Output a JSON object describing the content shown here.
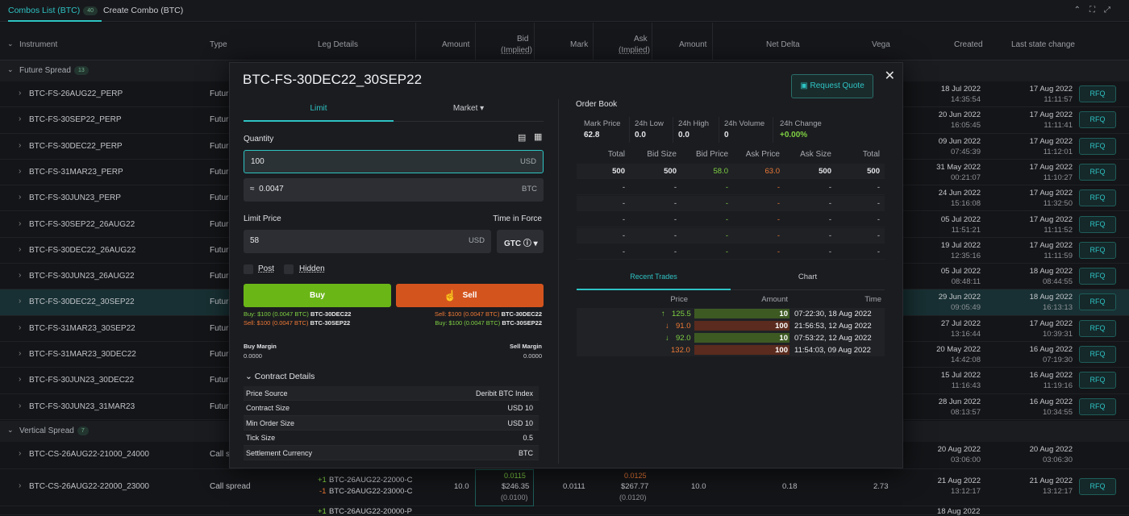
{
  "tabs": {
    "combos_list": "Combos List (BTC)",
    "combos_count": "40",
    "create_combo": "Create Combo (BTC)"
  },
  "colors": {
    "accent": "#2ec3c3",
    "buy": "#6ab617",
    "sell": "#d4541e",
    "up": "#7fd142",
    "down": "#f07a35"
  },
  "table": {
    "headers": {
      "instrument": "Instrument",
      "type": "Type",
      "leg_details": "Leg Details",
      "amount": "Amount",
      "bid": "Bid",
      "bid_sub": "(Implied)",
      "mark": "Mark",
      "ask": "Ask",
      "ask_sub": "(Implied)",
      "amount2": "Amount",
      "net_delta": "Net Delta",
      "vega": "Vega",
      "created": "Created",
      "last_state_change": "Last state change"
    },
    "group1": {
      "label": "Future Spread",
      "count": "13"
    },
    "group2": {
      "label": "Vertical Spread",
      "count": "7"
    },
    "rfq": "RFQ",
    "rows": [
      {
        "inst": "BTC-FS-26AUG22_PERP",
        "type": "Futur",
        "cd": "18 Jul 2022",
        "ct": "14:35:54",
        "ld": "17 Aug 2022",
        "lt": "11:11:57"
      },
      {
        "inst": "BTC-FS-30SEP22_PERP",
        "type": "Futur",
        "cd": "20 Jun 2022",
        "ct": "16:05:45",
        "ld": "17 Aug 2022",
        "lt": "11:11:41"
      },
      {
        "inst": "BTC-FS-30DEC22_PERP",
        "type": "Futur",
        "cd": "09 Jun 2022",
        "ct": "07:45:39",
        "ld": "17 Aug 2022",
        "lt": "11:12:01"
      },
      {
        "inst": "BTC-FS-31MAR23_PERP",
        "type": "Futur",
        "cd": "31 May 2022",
        "ct": "00:21:07",
        "ld": "17 Aug 2022",
        "lt": "11:10:27"
      },
      {
        "inst": "BTC-FS-30JUN23_PERP",
        "type": "Futur",
        "cd": "24 Jun 2022",
        "ct": "15:16:08",
        "ld": "17 Aug 2022",
        "lt": "11:32:50"
      },
      {
        "inst": "BTC-FS-30SEP22_26AUG22",
        "type": "Futur",
        "cd": "05 Jul 2022",
        "ct": "11:51:21",
        "ld": "17 Aug 2022",
        "lt": "11:11:52"
      },
      {
        "inst": "BTC-FS-30DEC22_26AUG22",
        "type": "Futur",
        "cd": "19 Jul 2022",
        "ct": "12:35:16",
        "ld": "17 Aug 2022",
        "lt": "11:11:59"
      },
      {
        "inst": "BTC-FS-30JUN23_26AUG22",
        "type": "Futur",
        "cd": "05 Jul 2022",
        "ct": "08:48:11",
        "ld": "18 Aug 2022",
        "lt": "08:44:55"
      },
      {
        "inst": "BTC-FS-30DEC22_30SEP22",
        "type": "Futur",
        "cd": "29 Jun 2022",
        "ct": "09:05:49",
        "ld": "18 Aug 2022",
        "lt": "16:13:13"
      },
      {
        "inst": "BTC-FS-31MAR23_30SEP22",
        "type": "Futur",
        "cd": "27 Jul 2022",
        "ct": "13:16:44",
        "ld": "17 Aug 2022",
        "lt": "10:39:31"
      },
      {
        "inst": "BTC-FS-31MAR23_30DEC22",
        "type": "Futur",
        "cd": "20 May 2022",
        "ct": "14:42:08",
        "ld": "16 Aug 2022",
        "lt": "07:19:30"
      },
      {
        "inst": "BTC-FS-30JUN23_30DEC22",
        "type": "Futur",
        "cd": "15 Jul 2022",
        "ct": "11:16:43",
        "ld": "16 Aug 2022",
        "lt": "11:19:16"
      },
      {
        "inst": "BTC-FS-30JUN23_31MAR23",
        "type": "Futur",
        "cd": "28 Jun 2022",
        "ct": "08:13:57",
        "ld": "16 Aug 2022",
        "lt": "10:34:55"
      }
    ],
    "vrows": [
      {
        "inst": "BTC-CS-26AUG22-21000_24000",
        "type": "Call s",
        "cd": "20 Aug 2022",
        "ct": "03:06:00",
        "ld": "20 Aug 2022",
        "lt": "03:06:30"
      },
      {
        "inst": "BTC-CS-26AUG22-22000_23000",
        "type": "Call spread",
        "cd": "21 Aug 2022",
        "ct": "13:12:17",
        "ld": "21 Aug 2022",
        "lt": "13:12:17",
        "leg1_sign": "+1",
        "leg1": "BTC-26AUG22-22000-C",
        "leg2_sign": "-1",
        "leg2": "BTC-26AUG22-23000-C",
        "amount": "10.0",
        "bid_top": "0.0115",
        "bid_mid": "$246.35",
        "bid_bot": "(0.0100)",
        "mark": "0.0111",
        "ask_top": "0.0125",
        "ask_mid": "$267.77",
        "ask_bot": "(0.0120)",
        "amount2": "10.0",
        "net_delta": "0.18",
        "vega": "2.73"
      }
    ],
    "partial": {
      "leg_sign": "+1",
      "leg": "BTC-26AUG22-20000-P",
      "created": "18 Aug 2022"
    }
  },
  "modal": {
    "title": "BTC-FS-30DEC22_30SEP22",
    "request_quote": "Request Quote",
    "tab_limit": "Limit",
    "tab_market": "Market",
    "quantity_label": "Quantity",
    "quantity_value": "100",
    "quantity_unit": "USD",
    "approx_prefix": "≈",
    "approx_value": "0.0047",
    "approx_unit": "BTC",
    "limit_price_label": "Limit Price",
    "tif_label": "Time in Force",
    "limit_price_value": "58",
    "limit_price_unit": "USD",
    "tif_value": "GTC",
    "post": "Post",
    "hidden": "Hidden",
    "buy": "Buy",
    "sell": "Sell",
    "buy_l1_a": "Buy: $100 (0.0047 BTC)",
    "buy_l1_b": "BTC-30DEC22",
    "buy_l2_a": "Sell: $100 (0.0047 BTC)",
    "buy_l2_b": "BTC-30SEP22",
    "sell_l1_a": "Sell: $100 (0.0047 BTC)",
    "sell_l1_b": "BTC-30DEC22",
    "sell_l2_a": "Buy: $100 (0.0047 BTC)",
    "sell_l2_b": "BTC-30SEP22",
    "buy_margin_label": "Buy Margin",
    "buy_margin": "0.0000",
    "sell_margin_label": "Sell Margin",
    "sell_margin": "0.0000",
    "contract_details": "Contract Details",
    "details": [
      {
        "k": "Price Source",
        "v": "Deribit BTC Index"
      },
      {
        "k": "Contract Size",
        "v": "USD 10"
      },
      {
        "k": "Min Order Size",
        "v": "USD 10"
      },
      {
        "k": "Tick Size",
        "v": "0.5"
      },
      {
        "k": "Settlement Currency",
        "v": "BTC"
      }
    ],
    "order_book": "Order Book",
    "stats": {
      "mark_price_l": "Mark Price",
      "mark_price": "62.8",
      "low_l": "24h Low",
      "low": "0.0",
      "high_l": "24h High",
      "high": "0.0",
      "vol_l": "24h Volume",
      "vol": "0",
      "chg_l": "24h Change",
      "chg": "+0.00%"
    },
    "ob_headers": [
      "Total",
      "Bid Size",
      "Bid Price",
      "Ask Price",
      "Ask Size",
      "Total"
    ],
    "ob_rows": [
      [
        "500",
        "500",
        "58.0",
        "63.0",
        "500",
        "500"
      ],
      [
        "-",
        "-",
        "-",
        "-",
        "-",
        "-"
      ],
      [
        "-",
        "-",
        "-",
        "-",
        "-",
        "-"
      ],
      [
        "-",
        "-",
        "-",
        "-",
        "-",
        "-"
      ],
      [
        "-",
        "-",
        "-",
        "-",
        "-",
        "-"
      ],
      [
        "-",
        "-",
        "-",
        "-",
        "-",
        "-"
      ]
    ],
    "tab_recent": "Recent Trades",
    "tab_chart": "Chart",
    "trade_headers": {
      "price": "Price",
      "amount": "Amount",
      "time": "Time"
    },
    "trades": [
      {
        "dir": "↑",
        "price": "125.5",
        "amount": "10",
        "time": "07:22:30, 18 Aug 2022",
        "side": "buy"
      },
      {
        "dir": "↓",
        "price": "91.0",
        "amount": "100",
        "time": "21:56:53, 12 Aug 2022",
        "side": "sell"
      },
      {
        "dir": "↓",
        "price": "92.0",
        "amount": "10",
        "time": "07:53:22, 12 Aug 2022",
        "side": "buy"
      },
      {
        "dir": "",
        "price": "132.0",
        "amount": "100",
        "time": "11:54:03, 09 Aug 2022",
        "side": "sell"
      }
    ]
  }
}
